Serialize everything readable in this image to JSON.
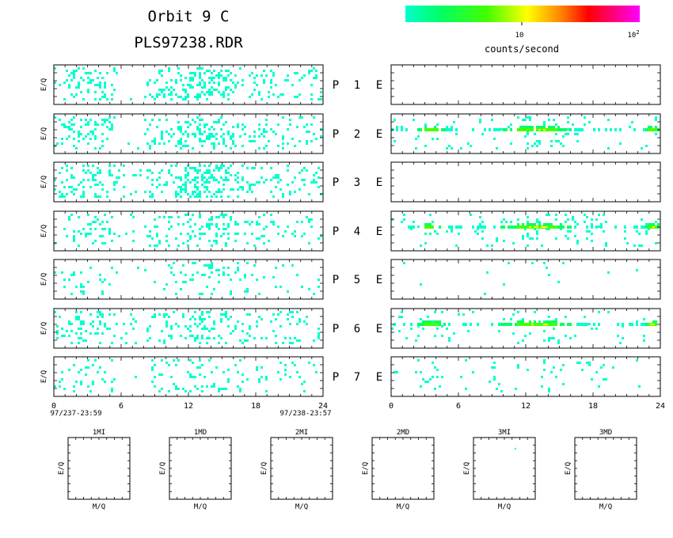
{
  "header": {
    "title_line1": "Orbit  9  C",
    "title_line2": "PLS97238.RDR"
  },
  "colorbar": {
    "label": "counts/second",
    "tick_10": "10",
    "tick_100_base": "10",
    "tick_100_exp": "2",
    "gradient": [
      "#00ffcc",
      "#00ff66",
      "#00ff00",
      "#ffff00",
      "#ff8800",
      "#ff0000",
      "#ff00aa",
      "#ff00ff"
    ]
  },
  "axes": {
    "ylabel": "E/Q",
    "xticks": [
      "0",
      "6",
      "12",
      "18",
      "24"
    ],
    "start_time": "97/237-23:59",
    "end_time": "97/238-23:57",
    "mass_xlabel": "M/Q",
    "mass_ylabel": "E/Q"
  },
  "channels": [
    {
      "p": "P",
      "num": "1",
      "e": "E"
    },
    {
      "p": "P",
      "num": "2",
      "e": "E"
    },
    {
      "p": "P",
      "num": "3",
      "e": "E"
    },
    {
      "p": "P",
      "num": "4",
      "e": "E"
    },
    {
      "p": "P",
      "num": "5",
      "e": "E"
    },
    {
      "p": "P",
      "num": "6",
      "e": "E"
    },
    {
      "p": "P",
      "num": "7",
      "e": "E"
    }
  ],
  "mass_panels": [
    "1MI",
    "1MD",
    "2MI",
    "2MD",
    "3MI",
    "3MD"
  ],
  "chart_data": {
    "type": "heatmap",
    "title": "Orbit  9  C  PLS97238.RDR",
    "xlabel": "",
    "ylabel": "E/Q",
    "xlim": [
      0,
      24
    ],
    "x_ticks": [
      0,
      6,
      12,
      18,
      24
    ],
    "colorbar": {
      "label": "counts/second",
      "scale": "log",
      "range": [
        1,
        100
      ]
    },
    "panels_left": [
      {
        "channel": "P 1",
        "density": 0.22
      },
      {
        "channel": "P 2",
        "density": 0.2
      },
      {
        "channel": "P 3",
        "density": 0.26
      },
      {
        "channel": "P 4",
        "density": 0.16
      },
      {
        "channel": "P 5",
        "density": 0.09
      },
      {
        "channel": "P 6",
        "density": 0.18
      },
      {
        "channel": "P 7",
        "density": 0.1
      }
    ],
    "panels_right": [
      {
        "channel": "E 1",
        "density": 0.0
      },
      {
        "channel": "E 2",
        "density": 0.08,
        "band": true
      },
      {
        "channel": "E 3",
        "density": 0.0
      },
      {
        "channel": "E 4",
        "density": 0.1,
        "band": true
      },
      {
        "channel": "E 5",
        "density": 0.01
      },
      {
        "channel": "E 6",
        "density": 0.06,
        "band": true
      },
      {
        "channel": "E 7",
        "density": 0.04
      }
    ]
  }
}
